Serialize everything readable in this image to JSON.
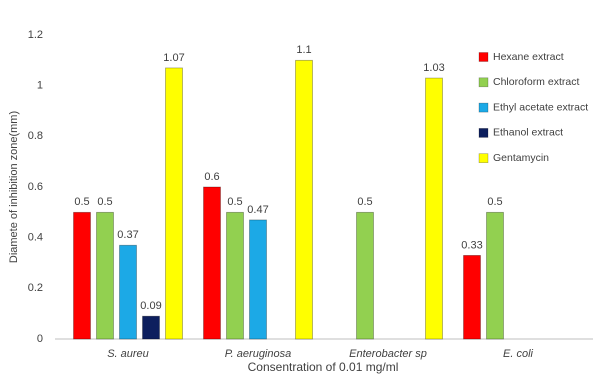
{
  "chart_data": {
    "type": "bar",
    "categories": [
      "S. aureu",
      "P. aeruginosa",
      "Enterobacter sp",
      "E. coli"
    ],
    "series": [
      {
        "name": "Hexane extract",
        "color": "#ff0000",
        "values": [
          0.5,
          0.6,
          null,
          0.33
        ]
      },
      {
        "name": "Chloroform extract",
        "color": "#92d050",
        "values": [
          0.5,
          0.5,
          0.5,
          0.5
        ]
      },
      {
        "name": "Ethyl acetate extract",
        "color": "#1ca9e6",
        "values": [
          0.37,
          0.47,
          null,
          null
        ]
      },
      {
        "name": "Ethanol extract",
        "color": "#0d1f5e",
        "values": [
          0.09,
          null,
          null,
          null
        ]
      },
      {
        "name": "Gentamycin",
        "color": "#ffff00",
        "values": [
          1.07,
          1.1,
          1.03,
          null
        ]
      }
    ],
    "ylabel": "Diamete of inhibition zone(mm)",
    "xlabel": "Consentration of 0.01 mg/ml",
    "ylim": [
      0,
      1.2
    ],
    "yticks": [
      0,
      0.2,
      0.4,
      0.6,
      0.8,
      1,
      1.2
    ],
    "grid": false,
    "legend": "upper right"
  }
}
